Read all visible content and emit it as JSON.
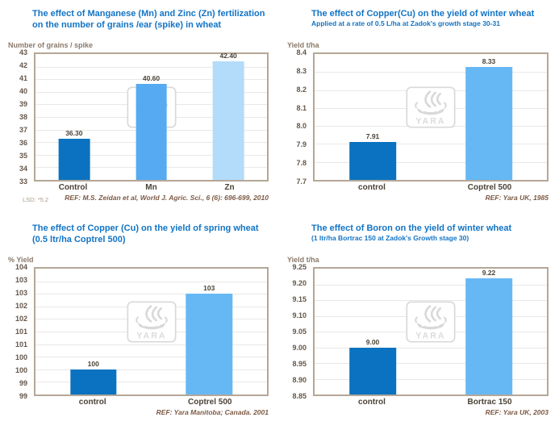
{
  "branding": {
    "watermark_text": "YARA"
  },
  "colors": {
    "title_blue": "#1274c5",
    "dark_bar": "#0a72c0",
    "medium_bar": "#55aaf2",
    "light_bar": "#b3dcfa",
    "treatment_bar": "#66b8f5",
    "plot_border": "#b5a797",
    "gridline": "#eae8e4",
    "ref_brown": "#7d5a45"
  },
  "chart_data": [
    {
      "type": "bar",
      "title": "The effect of Manganese (Mn) and Zinc (Zn) fertilization on the number of grains /ear (spike) in wheat",
      "subtitle": "",
      "ylabel": "Number of grains / spike",
      "xlabel": "",
      "categories": [
        "Control",
        "Mn",
        "Zn"
      ],
      "values": [
        36.3,
        40.6,
        42.4
      ],
      "value_labels": [
        "36.30",
        "40.60",
        "42.40"
      ],
      "ylim": [
        33,
        43
      ],
      "ytick_labels": [
        "43",
        "42",
        "41",
        "40",
        "39",
        "38",
        "37",
        "36",
        "35",
        "34",
        "33"
      ],
      "bar_colors": [
        "#0a72c0",
        "#55aaf2",
        "#b3dcfa"
      ],
      "bar_width_pct": 13.5,
      "grid": "on",
      "legend": "none",
      "footnote": "LSD: *5.2",
      "ref": "REF: M.S. Zeidan et al, World J. Agric. Sci., 6 (6): 696-699, 2010"
    },
    {
      "type": "bar",
      "title": "The effect of Copper(Cu) on the yield of winter wheat",
      "subtitle": "Applied at a rate of 0.5 L/ha at Zadok's growth stage 30-31",
      "ylabel": "Yield t/ha",
      "xlabel": "",
      "categories": [
        "control",
        "Coptrel 500"
      ],
      "values": [
        7.91,
        8.33
      ],
      "value_labels": [
        "7.91",
        "8.33"
      ],
      "ylim": [
        7.7,
        8.4
      ],
      "ytick_labels": [
        "8.4",
        "8.3",
        "8.2",
        "8.1",
        "8.0",
        "7.9",
        "7.8",
        "7.7"
      ],
      "bar_colors": [
        "#0a72c0",
        "#66b8f5"
      ],
      "bar_width_pct": 20,
      "grid": "on",
      "legend": "none",
      "footnote": "",
      "ref": "REF: Yara UK, 1985"
    },
    {
      "type": "bar",
      "title": "The effect of Copper (Cu) on the yield of spring wheat (0.5 ltr/ha Coptrel 500)",
      "subtitle": "",
      "ylabel": "% Yield",
      "xlabel": "",
      "categories": [
        "control",
        "Coptrel 500"
      ],
      "values": [
        100,
        103
      ],
      "value_labels": [
        "100",
        "103"
      ],
      "ylim": [
        99,
        104
      ],
      "ytick_labels": [
        "104",
        "103",
        "103",
        "102",
        "102",
        "101",
        "101",
        "100",
        "100",
        "99",
        "99"
      ],
      "bar_colors": [
        "#0a72c0",
        "#66b8f5"
      ],
      "bar_width_pct": 20,
      "grid": "on",
      "legend": "none",
      "footnote": "",
      "ref": "REF: Yara Manitoba; Canada. 2001"
    },
    {
      "type": "bar",
      "title": "The effect of Boron on the yield of winter wheat",
      "subtitle": "(1 ltr/ha Bortrac 150 at Zadok's Growth stage 30)",
      "ylabel": "Yield t/ha",
      "xlabel": "",
      "categories": [
        "control",
        "Bortrac 150"
      ],
      "values": [
        9.0,
        9.22
      ],
      "value_labels": [
        "9.00",
        "9.22"
      ],
      "ylim": [
        8.85,
        9.25
      ],
      "ytick_labels": [
        "9.25",
        "9.20",
        "9.15",
        "9.10",
        "9.05",
        "9.00",
        "8.95",
        "8.90",
        "8.85"
      ],
      "bar_colors": [
        "#0a72c0",
        "#66b8f5"
      ],
      "bar_width_pct": 20,
      "grid": "on",
      "legend": "none",
      "footnote": "",
      "ref": "REF: Yara UK, 2003"
    }
  ]
}
